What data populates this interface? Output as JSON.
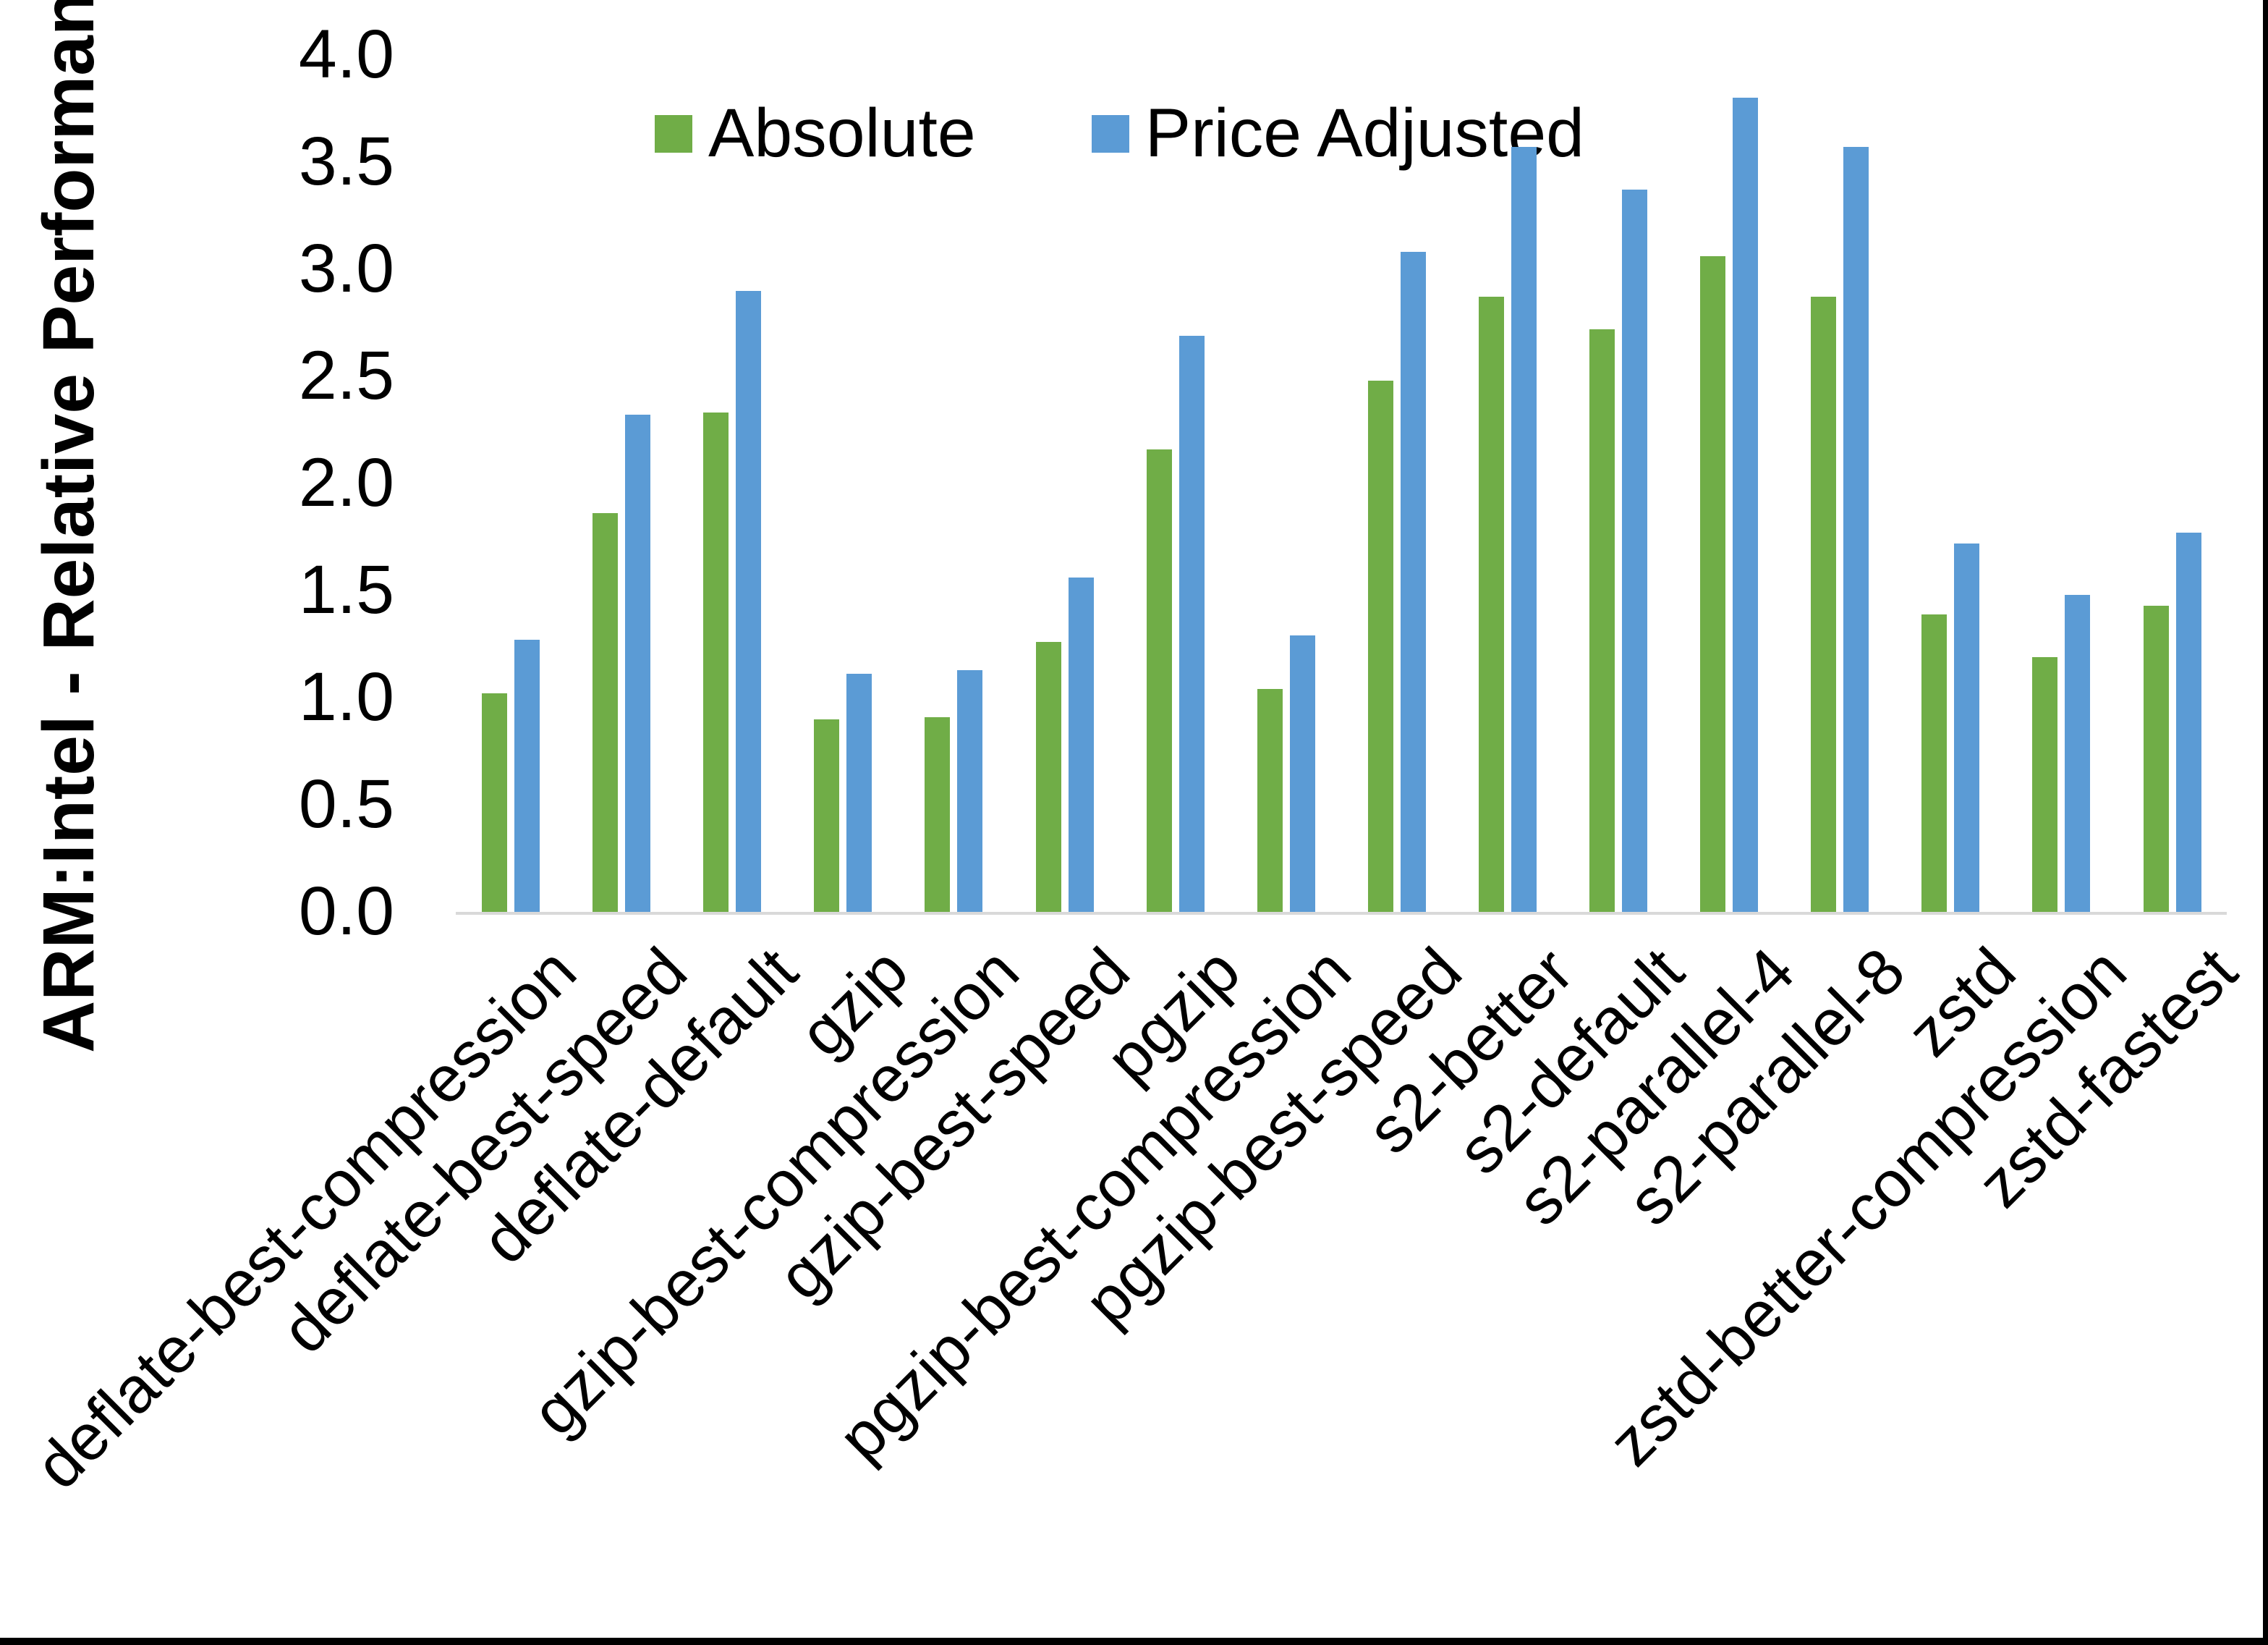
{
  "chart_data": {
    "type": "bar",
    "title": "",
    "ylabel": "ARM:Intel - Relative Performance",
    "xlabel": "",
    "ylim": [
      0.0,
      4.0
    ],
    "ytick_step": 0.5,
    "yticks": [
      "0.0",
      "0.5",
      "1.0",
      "1.5",
      "2.0",
      "2.5",
      "3.0",
      "3.5",
      "4.0"
    ],
    "grid": false,
    "legend_position": "top-center",
    "categories": [
      "deflate-best-compression",
      "deflate-best-speed",
      "deflate-default",
      "gzip",
      "gzip-best-compression",
      "gzip-best-speed",
      "pgzip",
      "pgzip-best-compression",
      "pgzip-best-speed",
      "s2-better",
      "s2-default",
      "s2-parallel-4",
      "s2-parallel-8",
      "zstd",
      "zstd-better-compression",
      "zstd-fastest"
    ],
    "series": [
      {
        "name": "Absolute",
        "color": "#70AD47",
        "values": [
          1.02,
          1.86,
          2.33,
          0.9,
          0.91,
          1.26,
          2.16,
          1.04,
          2.48,
          2.87,
          2.72,
          3.06,
          2.87,
          1.39,
          1.19,
          1.43
        ]
      },
      {
        "name": "Price Adjusted",
        "color": "#5B9BD5",
        "values": [
          1.27,
          2.32,
          2.9,
          1.11,
          1.13,
          1.56,
          2.69,
          1.29,
          3.08,
          3.57,
          3.37,
          3.8,
          3.57,
          1.72,
          1.48,
          1.77
        ]
      }
    ],
    "axis_line_color": "#d9d9d9",
    "text_color": "#000000"
  },
  "chart": {
    "y_axis_title": "ARM:Intel - Relative Performance",
    "legend": [
      "Absolute",
      "Price Adjusted"
    ]
  }
}
